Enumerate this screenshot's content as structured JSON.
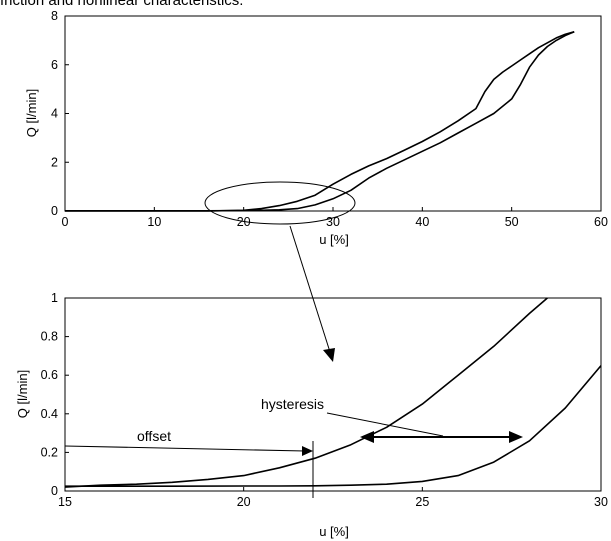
{
  "caption": "friction and nonlinear characteristics.",
  "chart_data": [
    {
      "type": "line",
      "xlabel": "u [%]",
      "ylabel": "Q [l/min]",
      "xlim": [
        0,
        60
      ],
      "ylim": [
        0,
        8
      ],
      "xticks": [
        0,
        10,
        20,
        30,
        40,
        50,
        60
      ],
      "yticks": [
        0,
        2,
        4,
        6,
        8
      ],
      "grid": false,
      "series": [
        {
          "x": [
            0,
            10,
            16,
            20,
            22,
            24,
            26,
            28,
            30,
            32,
            34,
            36,
            38,
            40,
            42,
            44,
            46,
            47,
            48,
            49,
            50,
            51,
            52,
            53,
            54,
            55,
            56,
            57
          ],
          "y": [
            0,
            0,
            0,
            0.03,
            0.1,
            0.22,
            0.4,
            0.65,
            1.1,
            1.5,
            1.85,
            2.15,
            2.5,
            2.85,
            3.25,
            3.7,
            4.2,
            4.9,
            5.4,
            5.7,
            5.95,
            6.2,
            6.45,
            6.7,
            6.9,
            7.1,
            7.25,
            7.35
          ]
        },
        {
          "x": [
            57,
            56,
            55,
            54,
            53,
            52,
            51,
            50,
            48,
            46,
            44,
            42,
            40,
            38,
            36,
            34,
            32,
            30,
            28,
            26,
            24,
            22,
            20,
            16,
            10,
            0
          ],
          "y": [
            7.35,
            7.2,
            7.0,
            6.75,
            6.4,
            5.9,
            5.2,
            4.6,
            4.0,
            3.6,
            3.2,
            2.8,
            2.45,
            2.1,
            1.75,
            1.35,
            0.85,
            0.5,
            0.25,
            0.1,
            0.05,
            0.03,
            0.02,
            0.01,
            0.01,
            0.01
          ]
        }
      ]
    },
    {
      "type": "line",
      "xlabel": "u [%]",
      "ylabel": "Q [l/min]",
      "xlim": [
        15,
        30
      ],
      "ylim": [
        0,
        1
      ],
      "xticks": [
        15,
        20,
        25,
        30
      ],
      "yticks": [
        0,
        0.2,
        0.4,
        0.6,
        0.8,
        1
      ],
      "grid": false,
      "annotations": [
        "offset",
        "hysteresis"
      ],
      "series": [
        {
          "x": [
            15,
            16,
            17,
            18,
            19,
            20,
            21,
            22,
            23,
            24,
            25,
            26,
            27,
            28,
            28.5
          ],
          "y": [
            0.02,
            0.03,
            0.035,
            0.045,
            0.06,
            0.08,
            0.12,
            0.17,
            0.24,
            0.33,
            0.45,
            0.6,
            0.75,
            0.92,
            1.0
          ]
        },
        {
          "x": [
            15,
            18,
            20,
            21,
            22,
            23,
            24,
            25,
            26,
            27,
            28,
            29,
            30
          ],
          "y": [
            0.025,
            0.025,
            0.026,
            0.026,
            0.027,
            0.03,
            0.035,
            0.05,
            0.08,
            0.15,
            0.26,
            0.43,
            0.65
          ]
        }
      ]
    }
  ]
}
